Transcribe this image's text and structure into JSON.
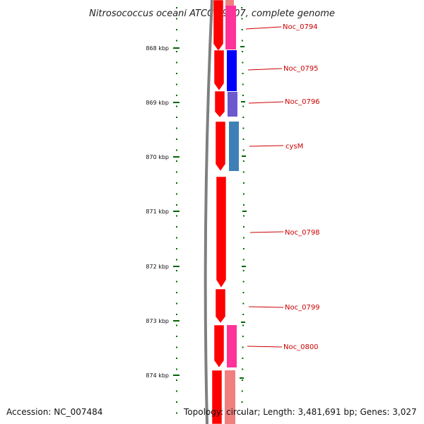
{
  "map": {
    "title": "Nitrosococcus oceani ATCC 19707, complete genome",
    "accession": "Accession: NC_007484",
    "summary": "Topology: circular; Length: 3,481,691 bp; Genes: 3,027",
    "ticks": [
      "868 kbp",
      "869 kbp",
      "870 kbp",
      "871 kbp",
      "872 kbp",
      "873 kbp",
      "874 kbp"
    ],
    "genes": [
      "Noc_0794",
      "Noc_0795",
      "Noc_0796",
      "cysM",
      "Noc_0798",
      "Noc_0799",
      "Noc_0800"
    ],
    "colors": {
      "cds_strand": "#ff0000",
      "genome_ring": "#7f7f7f",
      "tick_marks": "#006600",
      "label_color": "#cc0000",
      "feature_pink": "#ff3399",
      "feature_blue": "#0000ff",
      "feature_slate": "#6a5acd",
      "feature_steel": "#3f7fb8",
      "feature_light_pink": "#f08080"
    }
  }
}
